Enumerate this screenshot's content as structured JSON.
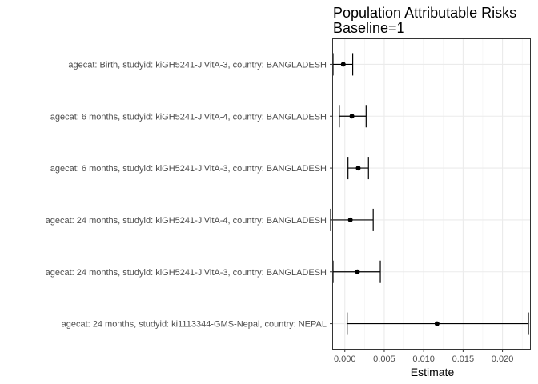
{
  "chart_data": {
    "type": "forest",
    "title": [
      "Population Attributable Risks",
      "Baseline=1"
    ],
    "xlabel": "Estimate",
    "ylabel": "",
    "xlim": [
      -0.0016,
      0.0236
    ],
    "x_ticks": [
      0.0,
      0.005,
      0.01,
      0.015,
      0.02
    ],
    "x_tick_labels": [
      "0.000",
      "0.005",
      "0.010",
      "0.015",
      "0.020"
    ],
    "grid": true,
    "rows": [
      {
        "label": "agecat: Birth, studyid: kiGH5241-JiVitA-3, country: BANGLADESH",
        "estimate": -0.0002,
        "ci_lower": -0.0015,
        "ci_upper": 0.001
      },
      {
        "label": "agecat: 6 months, studyid: kiGH5241-JiVitA-4, country: BANGLADESH",
        "estimate": 0.0009,
        "ci_lower": -0.0007,
        "ci_upper": 0.0027
      },
      {
        "label": "agecat: 6 months, studyid: kiGH5241-JiVitA-3, country: BANGLADESH",
        "estimate": 0.0017,
        "ci_lower": 0.0004,
        "ci_upper": 0.003
      },
      {
        "label": "agecat: 24 months, studyid: kiGH5241-JiVitA-4, country: BANGLADESH",
        "estimate": 0.0007,
        "ci_lower": -0.0018,
        "ci_upper": 0.0036
      },
      {
        "label": "agecat: 24 months, studyid: kiGH5241-JiVitA-3, country: BANGLADESH",
        "estimate": 0.0016,
        "ci_lower": -0.0015,
        "ci_upper": 0.0045
      },
      {
        "label": "agecat: 24 months, studyid: ki1113344-GMS-Nepal, country: NEPAL",
        "estimate": 0.0117,
        "ci_lower": 0.0003,
        "ci_upper": 0.0233
      }
    ]
  }
}
